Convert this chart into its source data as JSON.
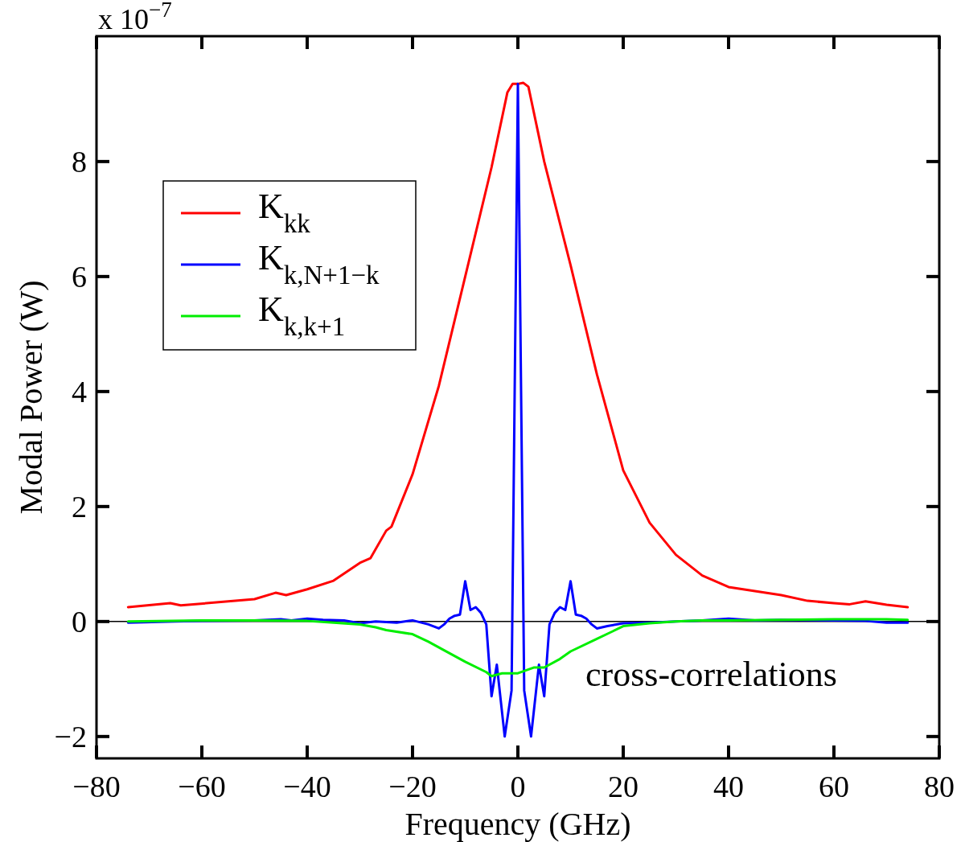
{
  "chart_data": {
    "type": "line",
    "xlabel": "Frequency (GHz)",
    "ylabel": "Modal Power (W)",
    "annotations": [
      "x 10$^{−7}$",
      "cross-correlations"
    ],
    "xlim": [
      -80,
      80
    ],
    "ylim": [
      -2.38,
      10.18
    ],
    "xticks": [
      {
        "value": -80,
        "label": "−80"
      },
      {
        "value": -60,
        "label": "−60"
      },
      {
        "value": -40,
        "label": "−40"
      },
      {
        "value": -20,
        "label": "−20"
      },
      0,
      20,
      40,
      60,
      80
    ],
    "yticks": [
      {
        "value": -2,
        "label": "−2"
      },
      0,
      2,
      4,
      6,
      8
    ],
    "legend": "top left",
    "grid": false,
    "ref_lines": [
      {
        "axis": "y",
        "value": 0,
        "color": "#000000"
      }
    ],
    "series": [
      {
        "name": "K$_{kk}$",
        "color": "#ff0000",
        "x": [
          -74,
          -66,
          -64,
          -55,
          -50,
          -46,
          -44,
          -40,
          -35,
          -30,
          -28,
          -25,
          -24,
          -20,
          -15,
          -10,
          -5,
          -2,
          -1,
          0,
          1,
          2,
          5,
          10,
          15,
          20,
          25,
          30,
          35,
          40,
          45,
          50,
          55,
          60,
          63,
          66,
          70,
          74
        ],
        "values": [
          0.25,
          0.32,
          0.28,
          0.35,
          0.39,
          0.5,
          0.46,
          0.56,
          0.71,
          1.02,
          1.1,
          1.58,
          1.65,
          2.56,
          4.1,
          6.0,
          7.9,
          9.2,
          9.35,
          9.35,
          9.37,
          9.3,
          8.0,
          6.2,
          4.3,
          2.63,
          1.72,
          1.16,
          0.8,
          0.6,
          0.53,
          0.46,
          0.36,
          0.32,
          0.3,
          0.35,
          0.29,
          0.25
        ]
      },
      {
        "name": "K$_{k,N+1−k}$",
        "color": "#0000ff",
        "x": [
          -74,
          -65,
          -60,
          -50,
          -45,
          -43,
          -40,
          -37,
          -33,
          -30,
          -27,
          -23,
          -20,
          -17,
          -15,
          -14,
          -13,
          -12,
          -11,
          -10,
          -9,
          -8,
          -7,
          -6,
          -5,
          -4,
          -2.5,
          -1.2,
          0,
          1.2,
          2.5,
          4,
          5,
          6,
          7,
          8,
          9,
          10,
          11,
          12,
          13,
          14,
          15,
          17,
          20,
          25,
          30,
          35,
          40,
          45,
          50,
          60,
          66,
          70,
          74
        ],
        "values": [
          -0.02,
          0,
          0.01,
          0.02,
          0.04,
          0.02,
          0.05,
          0.03,
          0.02,
          -0.03,
          0,
          -0.02,
          0.02,
          -0.05,
          -0.12,
          -0.05,
          0.05,
          0.1,
          0.12,
          0.7,
          0.2,
          0.25,
          0.15,
          -0.05,
          -1.3,
          -0.75,
          -2.0,
          -1.2,
          9.35,
          -1.2,
          -2.0,
          -0.75,
          -1.3,
          -0.05,
          0.15,
          0.25,
          0.2,
          0.7,
          0.12,
          0.1,
          0.05,
          -0.05,
          -0.12,
          -0.08,
          -0.03,
          -0.02,
          0,
          0.02,
          0.05,
          0.02,
          0.03,
          0.02,
          0.01,
          -0.02,
          -0.02
        ]
      },
      {
        "name": "K$_{k,k+1}$",
        "color": "#00ee00",
        "x": [
          -74,
          -60,
          -50,
          -40,
          -35,
          -30,
          -27,
          -25,
          -20,
          -17,
          -14,
          -10,
          -6,
          -5,
          -3,
          0,
          1.5,
          3,
          5,
          8,
          10,
          15,
          18,
          20,
          25,
          30,
          35,
          40,
          50,
          60,
          70,
          74
        ],
        "values": [
          0,
          0.02,
          0.02,
          0.01,
          -0.02,
          -0.05,
          -0.1,
          -0.15,
          -0.22,
          -0.35,
          -0.5,
          -0.7,
          -0.88,
          -0.95,
          -0.9,
          -0.9,
          -0.85,
          -0.8,
          -0.8,
          -0.65,
          -0.52,
          -0.3,
          -0.17,
          -0.08,
          -0.03,
          0,
          0.02,
          0.02,
          0.03,
          0.04,
          0.04,
          0.03
        ]
      }
    ]
  }
}
